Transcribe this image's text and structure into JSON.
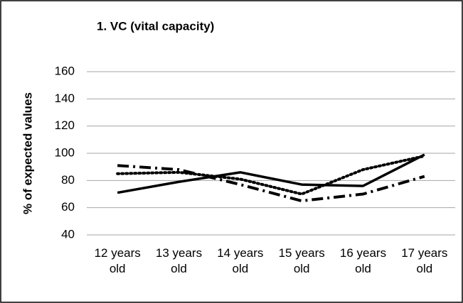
{
  "chart_data": {
    "type": "line",
    "title": "1. VC (vital capacity)",
    "y_label": "% of expected values",
    "categories": [
      "12 years old",
      "13 years old",
      "14 years old",
      "15 years old",
      "16 years old",
      "17 years old"
    ],
    "series": [
      {
        "color": "#000000",
        "style": "solid",
        "values": [
          71,
          79,
          86,
          77,
          76,
          99
        ]
      },
      {
        "color": "#000000",
        "style": "dotted",
        "values": [
          85,
          86,
          81,
          70,
          88,
          98
        ]
      },
      {
        "color": "#000000",
        "style": "dashed",
        "values": [
          91,
          88,
          77,
          65,
          70,
          83
        ]
      }
    ],
    "ylim": [
      40,
      160
    ],
    "yticks": [
      40,
      60,
      80,
      100,
      120,
      140,
      160
    ],
    "grid": true
  }
}
